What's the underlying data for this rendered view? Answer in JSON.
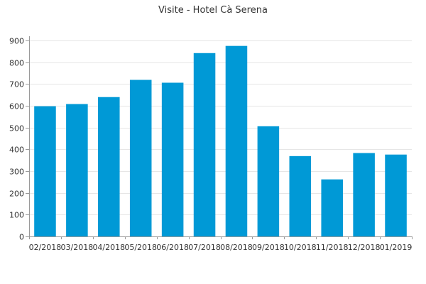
{
  "chart_data": {
    "type": "bar",
    "title": "Visite - Hotel Cà Serena",
    "xlabel": "",
    "ylabel": "",
    "categories": [
      "02/2018",
      "03/2018",
      "04/2018",
      "05/2018",
      "06/2018",
      "07/2018",
      "08/2018",
      "09/2018",
      "10/2018",
      "11/2018",
      "12/2018",
      "01/2019"
    ],
    "values": [
      598,
      608,
      640,
      719,
      706,
      842,
      875,
      506,
      369,
      262,
      383,
      376
    ],
    "ylim": [
      0,
      900
    ],
    "yticks": [
      0,
      100,
      200,
      300,
      400,
      500,
      600,
      700,
      800,
      900
    ],
    "grid": true,
    "legend": "none",
    "bar_color": "#0099d6"
  }
}
